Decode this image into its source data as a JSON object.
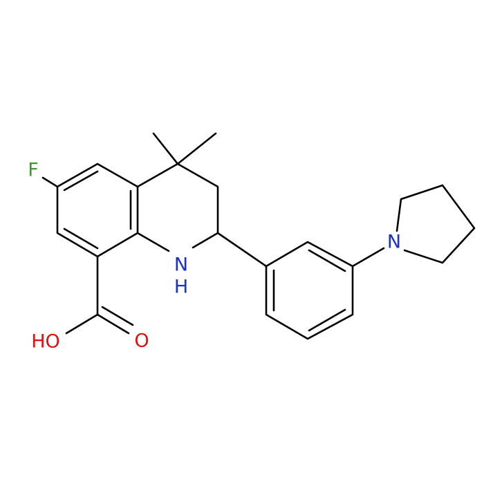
{
  "atom_labels": {
    "fluorine": "F",
    "amine_n": "N",
    "amine_h": "H",
    "hydroxyl": "HO",
    "carbonyl_o": "O",
    "pyrrolidine_n": "N"
  }
}
